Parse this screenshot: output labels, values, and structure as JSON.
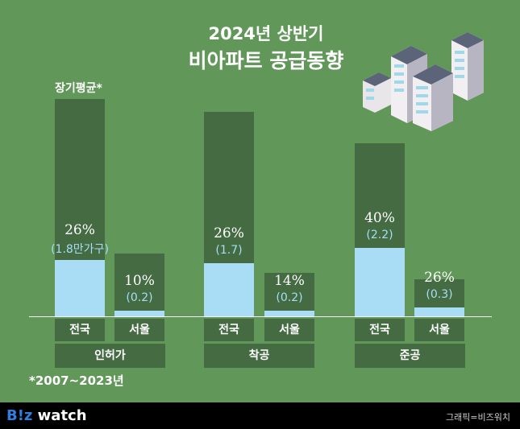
{
  "title_line1": "2024년 상반기",
  "title_line2": "비아파트 공급동향",
  "avg_label": "장기평균*",
  "note": "*2007~2023년",
  "footer": {
    "logo_b": "B!z",
    "logo_rest": " watch",
    "credit": "그래픽=비즈워치"
  },
  "colors": {
    "background": "#62975a",
    "long_term_avg": "#456b42",
    "h1_2024": "#a8ddf5"
  },
  "chart_data": {
    "type": "bar",
    "groups": [
      "인허가",
      "착공",
      "준공"
    ],
    "categories": [
      "전국",
      "서울"
    ],
    "unit": "만가구",
    "series_legend": "장기평균*",
    "bars": [
      {
        "group": "인허가",
        "category": "전국",
        "pct_label": "26%",
        "value_label": "(1.8만가구)",
        "value": 1.8,
        "long_term_avg": 6.9
      },
      {
        "group": "인허가",
        "category": "서울",
        "pct_label": "10%",
        "value_label": "(0.2)",
        "value": 0.2,
        "long_term_avg": 2.0
      },
      {
        "group": "착공",
        "category": "전국",
        "pct_label": "26%",
        "value_label": "(1.7)",
        "value": 1.7,
        "long_term_avg": 6.5
      },
      {
        "group": "착공",
        "category": "서울",
        "pct_label": "14%",
        "value_label": "(0.2)",
        "value": 0.2,
        "long_term_avg": 1.4
      },
      {
        "group": "준공",
        "category": "전국",
        "pct_label": "40%",
        "value_label": "(2.2)",
        "value": 2.2,
        "long_term_avg": 5.5
      },
      {
        "group": "준공",
        "category": "서울",
        "pct_label": "26%",
        "value_label": "(0.3)",
        "value": 0.3,
        "long_term_avg": 1.2
      }
    ]
  }
}
